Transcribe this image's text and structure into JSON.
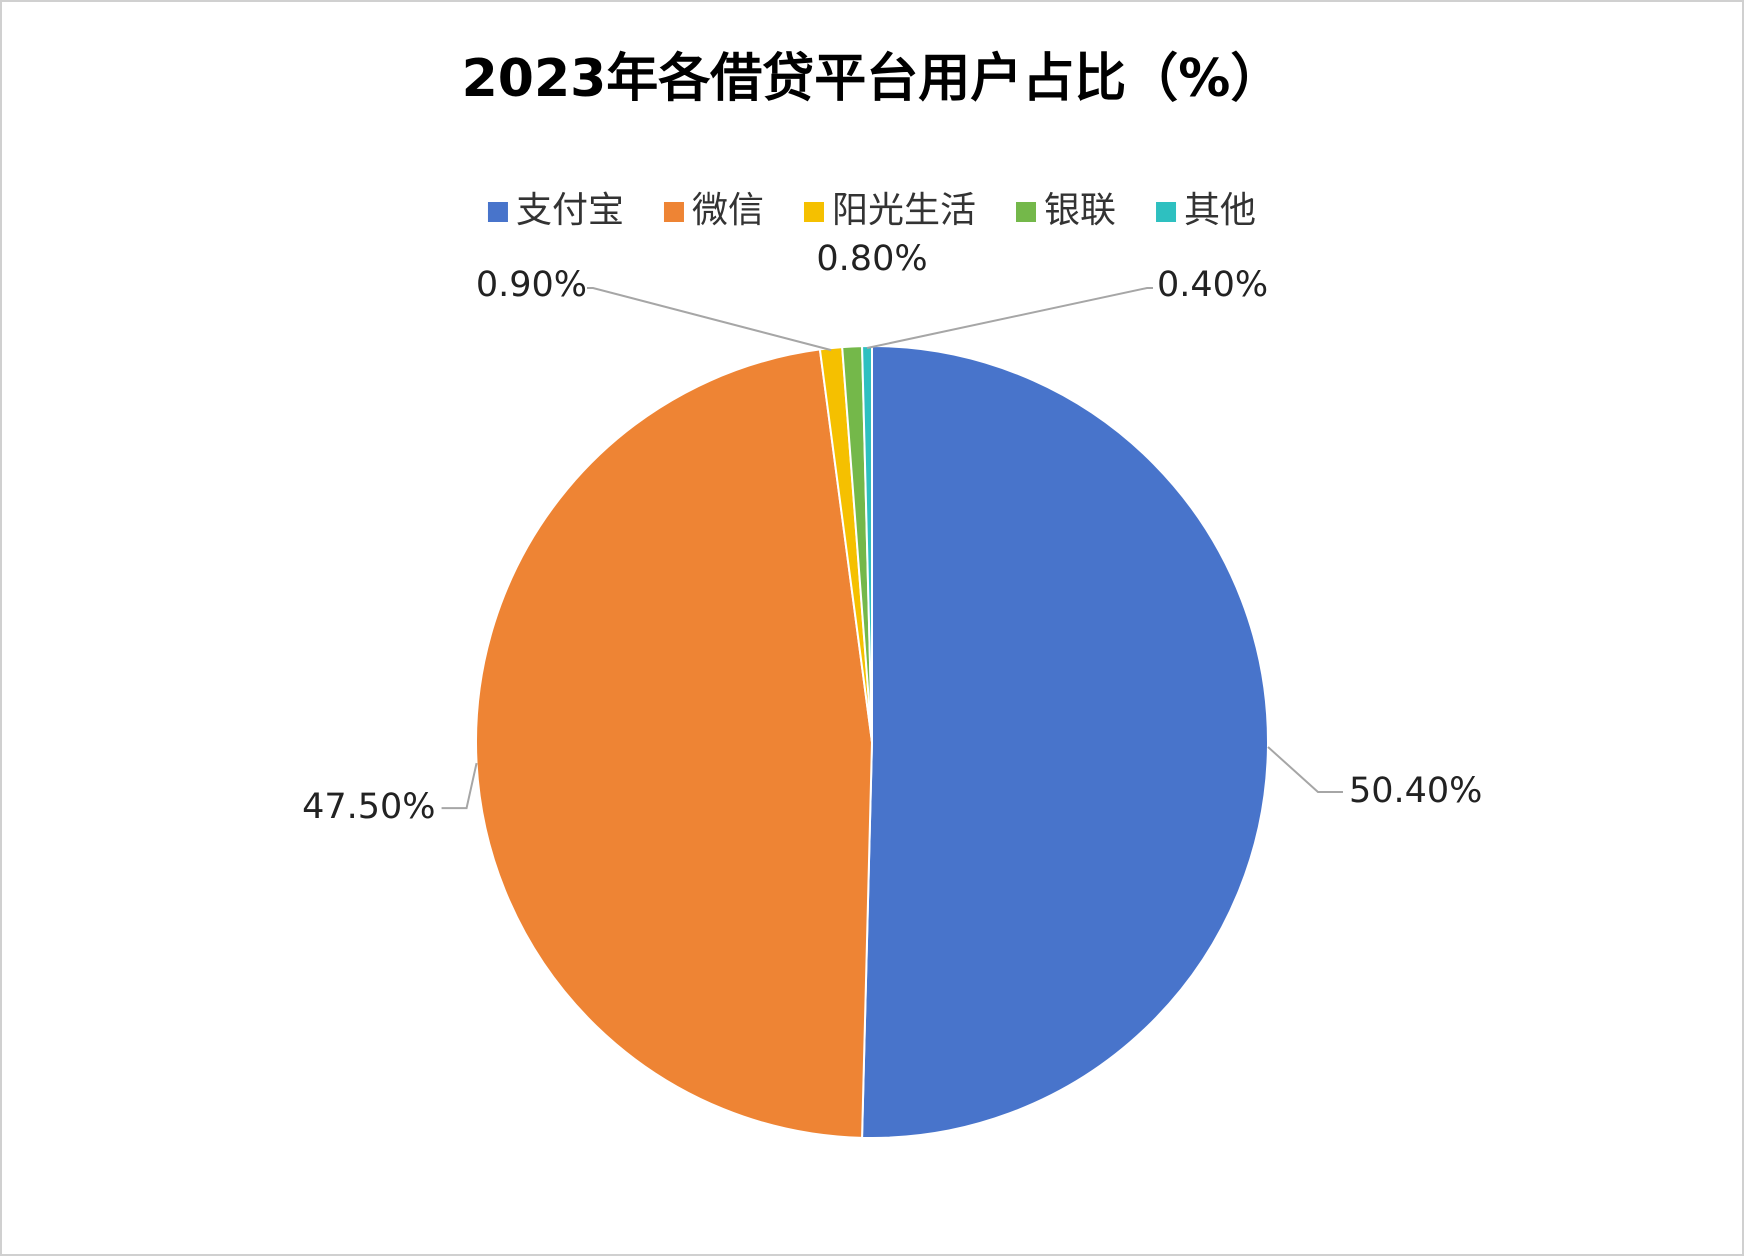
{
  "chart_data": {
    "type": "pie",
    "title": "2023年各借贷平台用户占比（%）",
    "categories": [
      "支付宝",
      "微信",
      "阳光生活",
      "银联",
      "其他"
    ],
    "values": [
      50.4,
      47.5,
      0.9,
      0.8,
      0.4
    ],
    "value_labels": [
      "50.40%",
      "47.50%",
      "0.90%",
      "0.80%",
      "0.40%"
    ],
    "colors": [
      "#4874cb",
      "#ee8434",
      "#f5c000",
      "#74b84a",
      "#2ec0c0"
    ],
    "legend": "top"
  }
}
